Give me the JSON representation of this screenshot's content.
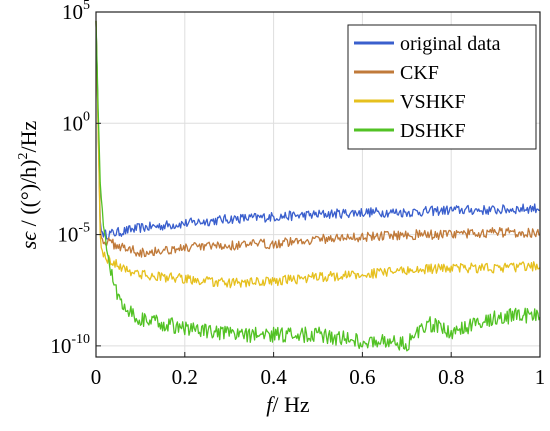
{
  "chart_data": {
    "type": "line",
    "title": "",
    "xlabel": {
      "italic": "f",
      "rest": "/ Hz"
    },
    "ylabel": {
      "sym": "sϵ",
      "rest": " / ((°)/h)",
      "sup": "2",
      "tail": "/Hz"
    },
    "xlim": [
      0,
      1
    ],
    "ylim_log10": [
      -10.5,
      5
    ],
    "yscale": "log",
    "grid": true,
    "legend_position": "top-right",
    "x_ticks": [
      "0",
      "0.2",
      "0.4",
      "0.6",
      "0.8",
      "1"
    ],
    "y_ticks": [
      {
        "exp": 5,
        "base": "10",
        "sup": "5"
      },
      {
        "exp": 0,
        "base": "10",
        "sup": "0"
      },
      {
        "exp": -5,
        "base": "10",
        "sup": "-5"
      },
      {
        "exp": -10,
        "base": "10",
        "sup": "-10"
      }
    ],
    "series": [
      {
        "name": "original data",
        "color": "#3a5fcd",
        "x": [
          0,
          0.01,
          0.02,
          0.05,
          0.1,
          0.2,
          0.3,
          0.4,
          0.5,
          0.6,
          0.7,
          0.8,
          0.9,
          1.0
        ],
        "log10_y": [
          4.6,
          -4.8,
          -5.0,
          -4.9,
          -4.7,
          -4.5,
          -4.3,
          -4.2,
          -4.1,
          -4.0,
          -4.0,
          -3.9,
          -3.9,
          -3.8
        ]
      },
      {
        "name": "CKF",
        "color": "#c07a3a",
        "x": [
          0,
          0.01,
          0.02,
          0.05,
          0.1,
          0.2,
          0.3,
          0.4,
          0.5,
          0.6,
          0.7,
          0.8,
          0.9,
          1.0
        ],
        "log10_y": [
          4.6,
          -5.1,
          -5.3,
          -5.5,
          -5.8,
          -5.6,
          -5.5,
          -5.4,
          -5.2,
          -5.1,
          -5.0,
          -5.0,
          -4.9,
          -4.9
        ]
      },
      {
        "name": "VSHKF",
        "color": "#e6c01e",
        "x": [
          0,
          0.01,
          0.02,
          0.05,
          0.1,
          0.15,
          0.2,
          0.3,
          0.4,
          0.5,
          0.6,
          0.7,
          0.8,
          0.9,
          1.0
        ],
        "log10_y": [
          4.6,
          -5.5,
          -6.0,
          -6.4,
          -6.8,
          -6.9,
          -7.0,
          -7.2,
          -7.1,
          -6.9,
          -6.8,
          -6.6,
          -6.5,
          -6.5,
          -6.4
        ]
      },
      {
        "name": "DSHKF",
        "color": "#52c224",
        "x": [
          0,
          0.005,
          0.01,
          0.02,
          0.03,
          0.05,
          0.08,
          0.1,
          0.12,
          0.15,
          0.2,
          0.3,
          0.4,
          0.5,
          0.6,
          0.65,
          0.7,
          0.75,
          0.8,
          0.9,
          1.0
        ],
        "log10_y": [
          4.6,
          0.5,
          -3.0,
          -5.0,
          -6.5,
          -7.8,
          -8.5,
          -8.8,
          -8.9,
          -9.0,
          -9.2,
          -9.5,
          -9.5,
          -9.5,
          -9.8,
          -9.8,
          -9.9,
          -9.0,
          -9.4,
          -8.7,
          -8.6
        ]
      }
    ]
  }
}
